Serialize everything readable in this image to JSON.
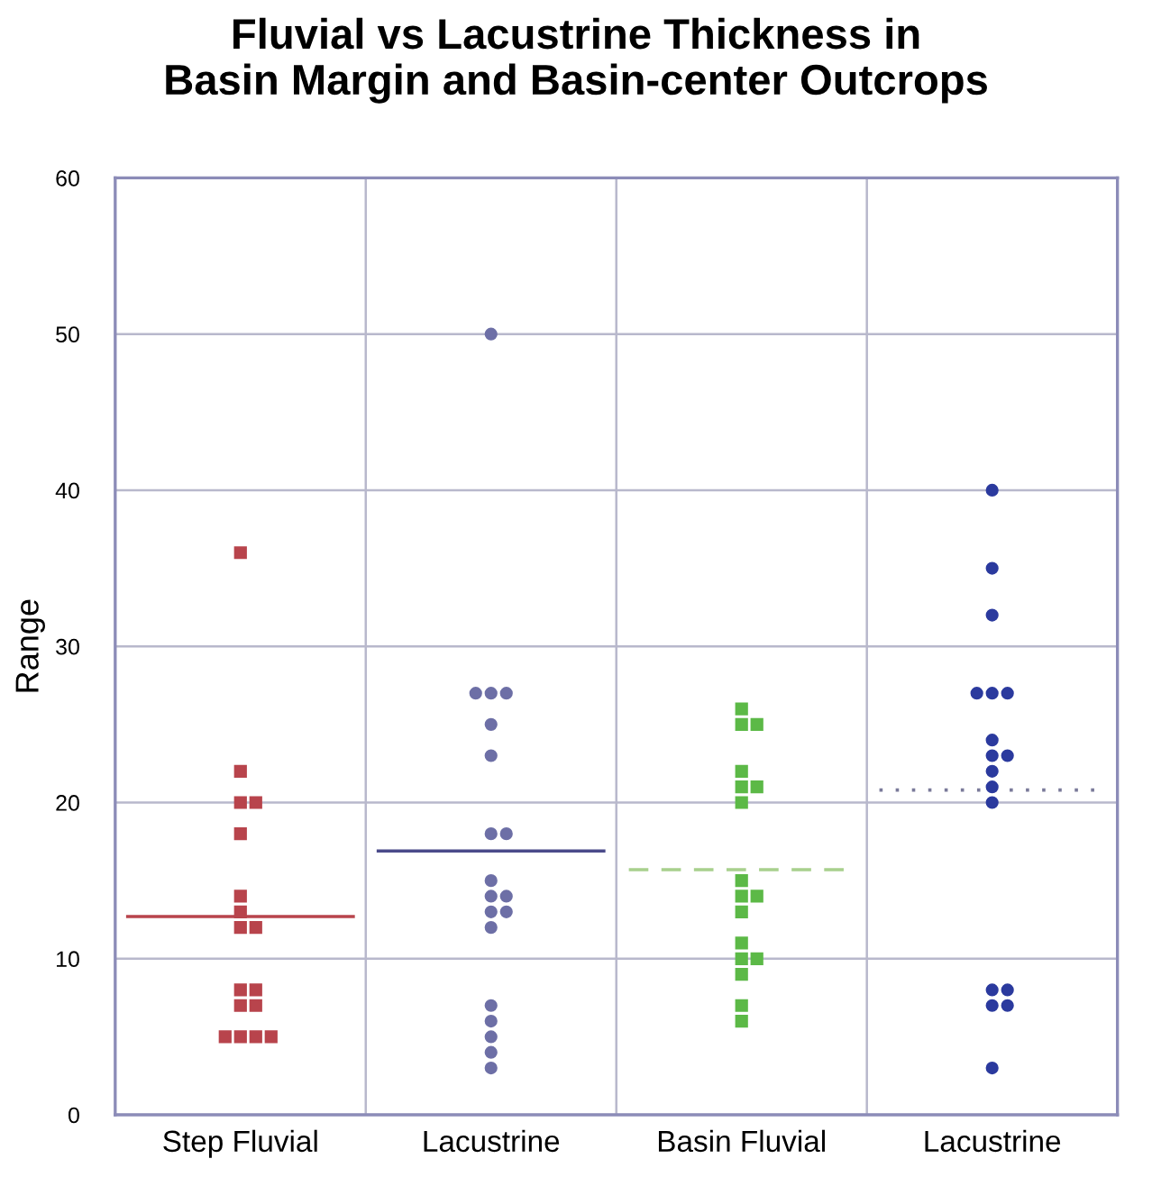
{
  "chart_data": {
    "type": "scatter",
    "title": "Fluvial vs Lacustrine Thickness in\nBasin Margin and Basin-center Outcrops",
    "ylabel": "Range",
    "categories": [
      "Step Fluvial",
      "Lacustrine",
      "Basin Fluvial",
      "Lacustrine"
    ],
    "ylim": [
      0,
      60
    ],
    "yticks": [
      0,
      10,
      20,
      30,
      40,
      50,
      60
    ],
    "grid": true,
    "series": [
      {
        "marker": "square",
        "colors": [
          "#b8444c",
          null,
          "#5cb947",
          null
        ],
        "values": [
          36,
          null,
          26,
          null
        ]
      },
      {
        "marker": "square",
        "colors": [
          "#b8444c",
          null,
          "#5cb947",
          null
        ],
        "values": [
          22,
          null,
          25,
          null
        ]
      },
      {
        "marker": "square",
        "colors": [
          "#b8444c",
          null,
          "#5cb947",
          null
        ],
        "values": [
          20,
          null,
          25,
          null
        ]
      },
      {
        "marker": "square",
        "colors": [
          "#b8444c",
          null,
          "#5cb947",
          null
        ],
        "values": [
          20,
          null,
          22,
          null
        ]
      },
      {
        "marker": "square",
        "colors": [
          "#b8444c",
          null,
          "#5cb947",
          null
        ],
        "values": [
          18,
          null,
          21,
          null
        ]
      },
      {
        "marker": "square",
        "colors": [
          "#b8444c",
          null,
          "#5cb947",
          null
        ],
        "values": [
          14,
          null,
          21,
          null
        ]
      },
      {
        "marker": "square",
        "colors": [
          "#b8444c",
          null,
          "#5cb947",
          null
        ],
        "values": [
          13,
          null,
          20,
          null
        ]
      },
      {
        "marker": "square",
        "colors": [
          "#b8444c",
          null,
          "#5cb947",
          null
        ],
        "values": [
          12,
          null,
          15,
          null
        ]
      },
      {
        "marker": "square",
        "colors": [
          "#b8444c",
          null,
          "#5cb947",
          null
        ],
        "values": [
          12,
          null,
          14,
          null
        ]
      },
      {
        "marker": "square",
        "colors": [
          "#b8444c",
          null,
          "#5cb947",
          null
        ],
        "values": [
          8,
          null,
          14,
          null
        ]
      },
      {
        "marker": "square",
        "colors": [
          "#b8444c",
          null,
          "#5cb947",
          null
        ],
        "values": [
          8,
          null,
          13,
          null
        ]
      },
      {
        "marker": "square",
        "colors": [
          "#b8444c",
          null,
          "#5cb947",
          null
        ],
        "values": [
          7,
          null,
          11,
          null
        ]
      },
      {
        "marker": "square",
        "colors": [
          "#b8444c",
          null,
          "#5cb947",
          null
        ],
        "values": [
          7,
          null,
          10,
          null
        ]
      },
      {
        "marker": "square",
        "colors": [
          "#b8444c",
          null,
          "#5cb947",
          null
        ],
        "values": [
          5,
          null,
          10,
          null
        ]
      },
      {
        "marker": "square",
        "colors": [
          "#b8444c",
          null,
          "#5cb947",
          null
        ],
        "values": [
          5,
          null,
          9,
          null
        ]
      },
      {
        "marker": "square",
        "colors": [
          "#b8444c",
          null,
          "#5cb947",
          null
        ],
        "values": [
          5,
          null,
          7,
          null
        ]
      },
      {
        "marker": "square",
        "colors": [
          "#b8444c",
          null,
          "#5cb947",
          null
        ],
        "values": [
          5,
          null,
          6,
          null
        ]
      },
      {
        "marker": "circle",
        "colors": [
          null,
          "#6d6fa6",
          null,
          "#2b3a9e"
        ],
        "values": [
          null,
          50,
          null,
          40
        ]
      },
      {
        "marker": "circle",
        "colors": [
          null,
          "#6d6fa6",
          null,
          "#2b3a9e"
        ],
        "values": [
          null,
          27,
          null,
          35
        ]
      },
      {
        "marker": "circle",
        "colors": [
          null,
          "#6d6fa6",
          null,
          "#2b3a9e"
        ],
        "values": [
          null,
          27,
          null,
          32
        ]
      },
      {
        "marker": "circle",
        "colors": [
          null,
          "#6d6fa6",
          null,
          "#2b3a9e"
        ],
        "values": [
          null,
          27,
          null,
          27
        ]
      },
      {
        "marker": "circle",
        "colors": [
          null,
          "#6d6fa6",
          null,
          "#2b3a9e"
        ],
        "values": [
          null,
          25,
          null,
          27
        ]
      },
      {
        "marker": "circle",
        "colors": [
          null,
          "#6d6fa6",
          null,
          "#2b3a9e"
        ],
        "values": [
          null,
          23,
          null,
          27
        ]
      },
      {
        "marker": "circle",
        "colors": [
          null,
          "#6d6fa6",
          null,
          "#2b3a9e"
        ],
        "values": [
          null,
          18,
          null,
          24
        ]
      },
      {
        "marker": "circle",
        "colors": [
          null,
          "#6d6fa6",
          null,
          "#2b3a9e"
        ],
        "values": [
          null,
          18,
          null,
          23
        ]
      },
      {
        "marker": "circle",
        "colors": [
          null,
          "#6d6fa6",
          null,
          "#2b3a9e"
        ],
        "values": [
          null,
          15,
          null,
          23
        ]
      },
      {
        "marker": "circle",
        "colors": [
          null,
          "#6d6fa6",
          null,
          "#2b3a9e"
        ],
        "values": [
          null,
          14,
          null,
          22
        ]
      },
      {
        "marker": "circle",
        "colors": [
          null,
          "#6d6fa6",
          null,
          "#2b3a9e"
        ],
        "values": [
          null,
          14,
          null,
          21
        ]
      },
      {
        "marker": "circle",
        "colors": [
          null,
          "#6d6fa6",
          null,
          "#2b3a9e"
        ],
        "values": [
          null,
          13,
          null,
          20
        ]
      },
      {
        "marker": "circle",
        "colors": [
          null,
          "#6d6fa6",
          null,
          "#2b3a9e"
        ],
        "values": [
          null,
          13,
          null,
          8
        ]
      },
      {
        "marker": "circle",
        "colors": [
          null,
          "#6d6fa6",
          null,
          "#2b3a9e"
        ],
        "values": [
          null,
          12,
          null,
          8
        ]
      },
      {
        "marker": "circle",
        "colors": [
          null,
          "#6d6fa6",
          null,
          "#2b3a9e"
        ],
        "values": [
          null,
          7,
          null,
          7
        ]
      },
      {
        "marker": "circle",
        "colors": [
          null,
          "#6d6fa6",
          null,
          "#2b3a9e"
        ],
        "values": [
          null,
          6,
          null,
          7
        ]
      },
      {
        "marker": "circle",
        "colors": [
          null,
          "#6d6fa6",
          null,
          "#2b3a9e"
        ],
        "values": [
          null,
          5,
          null,
          3
        ]
      },
      {
        "marker": "circle",
        "colors": [
          null,
          "#6d6fa6",
          null,
          null
        ],
        "values": [
          null,
          4,
          null,
          null
        ]
      },
      {
        "marker": "circle",
        "colors": [
          null,
          "#6d6fa6",
          null,
          null
        ],
        "values": [
          null,
          3,
          null,
          null
        ]
      }
    ],
    "ref_lines": [
      {
        "axis": "y",
        "value": 12.7,
        "color": "#b8444c",
        "line_style": "solid"
      },
      {
        "axis": "y",
        "value": 16.9,
        "color": "#4a4a8a",
        "line_style": "solid"
      },
      {
        "axis": "y",
        "value": 15.7,
        "color": "#a8d08d",
        "line_style": "dashed"
      },
      {
        "axis": "y",
        "value": 20.8,
        "color": "#7a7a9a",
        "line_style": "dotted"
      }
    ]
  }
}
